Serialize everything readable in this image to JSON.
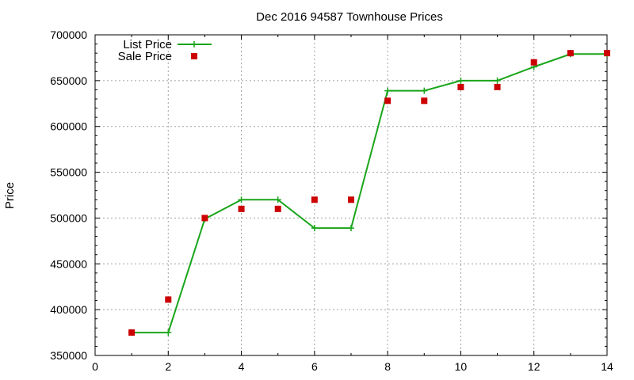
{
  "chart_data": {
    "type": "line",
    "title": "Dec 2016 94587 Townhouse Prices",
    "xlabel": "",
    "ylabel": "Price",
    "xlim": [
      0,
      14
    ],
    "ylim": [
      350000,
      700000
    ],
    "xticks": [
      0,
      2,
      4,
      6,
      8,
      10,
      12,
      14
    ],
    "yticks": [
      350000,
      400000,
      450000,
      500000,
      550000,
      600000,
      650000,
      700000
    ],
    "xtick_labels": [
      "0",
      "2",
      "4",
      "6",
      "8",
      "10",
      "12",
      "14"
    ],
    "ytick_labels": [
      "350000",
      "400000",
      "450000",
      "500000",
      "550000",
      "600000",
      "650000",
      "700000"
    ],
    "grid": true,
    "legend_position": "top-left",
    "series": [
      {
        "name": "List Price",
        "style": "line+cross",
        "color": "#1aa51a",
        "x": [
          1,
          2,
          3,
          4,
          5,
          6,
          7,
          8,
          9,
          10,
          11,
          12,
          13,
          14
        ],
        "values": [
          375000,
          375000,
          499000,
          520000,
          520000,
          489000,
          489000,
          639000,
          639000,
          650000,
          650000,
          665000,
          679000,
          679000
        ]
      },
      {
        "name": "Sale Price",
        "style": "square-markers",
        "color": "#cc0000",
        "x": [
          1,
          2,
          3,
          4,
          5,
          6,
          7,
          8,
          9,
          10,
          11,
          12,
          13,
          14
        ],
        "values": [
          375000,
          411000,
          500000,
          510000,
          510000,
          520000,
          520000,
          628000,
          628000,
          643000,
          643000,
          670000,
          680000,
          680000
        ]
      }
    ]
  }
}
